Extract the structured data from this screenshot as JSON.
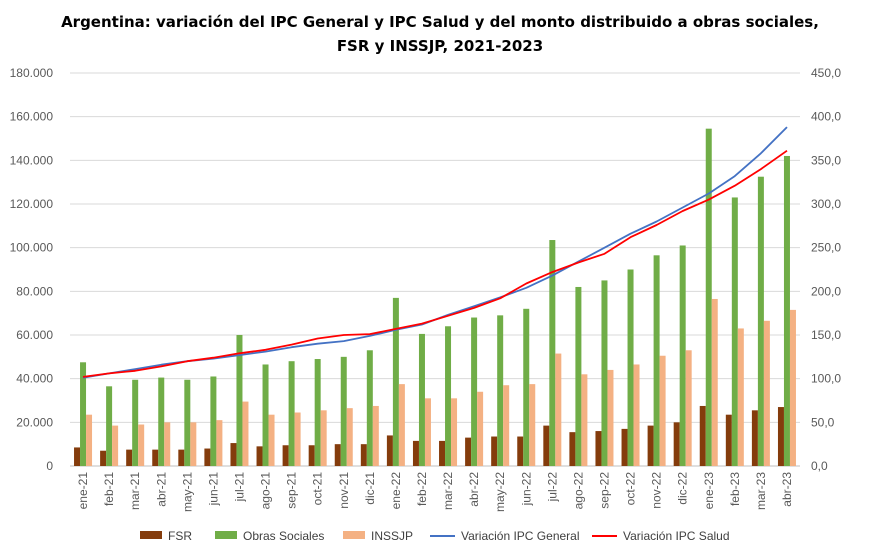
{
  "chart_data": {
    "type": "bar",
    "title": "Argentina: variación del IPC General y IPC Salud y del monto distribuido a obras sociales, FSR y INSSJP, 2021-2023",
    "categories": [
      "ene-21",
      "feb-21",
      "mar-21",
      "abr-21",
      "may-21",
      "jun-21",
      "jul-21",
      "ago-21",
      "sep-21",
      "oct-21",
      "nov-21",
      "dic-21",
      "ene-22",
      "feb-22",
      "mar-22",
      "abr-22",
      "may-22",
      "jun-22",
      "jul-22",
      "ago-22",
      "sep-22",
      "oct-22",
      "nov-22",
      "dic-22",
      "ene-23",
      "feb-23",
      "mar-23",
      "abr-23"
    ],
    "y_left": {
      "ylim": [
        0,
        180000
      ],
      "ticks": [
        0,
        20000,
        40000,
        60000,
        80000,
        100000,
        120000,
        140000,
        160000,
        180000
      ],
      "tick_labels": [
        "0",
        "20.000",
        "40.000",
        "60.000",
        "80.000",
        "100.000",
        "120.000",
        "140.000",
        "160.000",
        "180.000"
      ]
    },
    "y_right": {
      "ylim": [
        0,
        450
      ],
      "ticks": [
        0,
        50,
        100,
        150,
        200,
        250,
        300,
        350,
        400,
        450
      ],
      "tick_labels": [
        "0,0",
        "50,0",
        "100,0",
        "150,0",
        "200,0",
        "250,0",
        "300,0",
        "350,0",
        "400,0",
        "450,0"
      ]
    },
    "series": [
      {
        "name": "FSR",
        "kind": "bar",
        "axis": "left",
        "color": "#843c0c",
        "values": [
          8500,
          7000,
          7500,
          7500,
          7500,
          8000,
          10500,
          9000,
          9500,
          9500,
          10000,
          10000,
          14000,
          11500,
          11500,
          13000,
          13500,
          13500,
          18500,
          15500,
          16000,
          17000,
          18500,
          20000,
          27500,
          23500,
          25500,
          27000
        ]
      },
      {
        "name": "Obras Sociales",
        "kind": "bar",
        "axis": "left",
        "color": "#70ad47",
        "values": [
          47500,
          36500,
          39500,
          40500,
          39500,
          41000,
          60000,
          46500,
          48000,
          49000,
          50000,
          53000,
          77000,
          60500,
          64000,
          68000,
          69000,
          72000,
          103500,
          82000,
          85000,
          90000,
          96500,
          101000,
          154500,
          123000,
          132500,
          142000
        ]
      },
      {
        "name": "INSSJP",
        "kind": "bar",
        "axis": "left",
        "color": "#f4b183",
        "values": [
          23500,
          18500,
          19000,
          20000,
          20000,
          21000,
          29500,
          23500,
          24500,
          25500,
          26500,
          27500,
          37500,
          31000,
          31000,
          34000,
          37000,
          37500,
          51500,
          42000,
          44000,
          46500,
          50500,
          53000,
          76500,
          63000,
          66500,
          71500
        ]
      },
      {
        "name": "Variación IPC General",
        "kind": "line",
        "axis": "right",
        "color": "#4472c4",
        "values": [
          101,
          106,
          111,
          116,
          120,
          123,
          127,
          131,
          136,
          140,
          143,
          149,
          156,
          162,
          173,
          183,
          193,
          204,
          218,
          234,
          250,
          266,
          280,
          296,
          312,
          332,
          358,
          388
        ]
      },
      {
        "name": "Variación IPC Salud",
        "kind": "line",
        "axis": "right",
        "color": "#ff0000",
        "values": [
          102,
          106,
          109,
          114,
          120,
          124,
          129,
          133,
          139,
          146,
          150,
          151,
          157,
          163,
          172,
          181,
          192,
          209,
          222,
          233,
          243,
          262,
          276,
          292,
          305,
          321,
          340,
          361
        ]
      }
    ],
    "legend_position": "bottom",
    "grid": "horizontal"
  }
}
